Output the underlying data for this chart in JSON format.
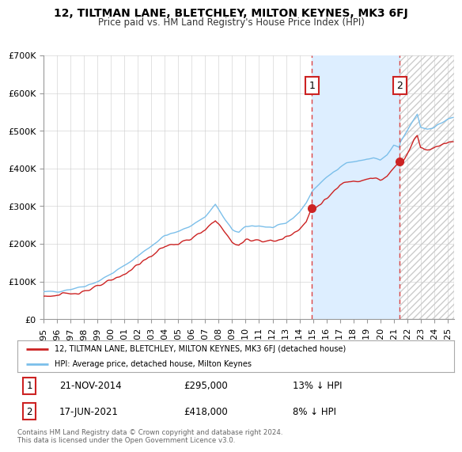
{
  "title": "12, TILTMAN LANE, BLETCHLEY, MILTON KEYNES, MK3 6FJ",
  "subtitle": "Price paid vs. HM Land Registry's House Price Index (HPI)",
  "ylim": [
    0,
    700000
  ],
  "yticks": [
    0,
    100000,
    200000,
    300000,
    400000,
    500000,
    600000,
    700000
  ],
  "ytick_labels": [
    "£0",
    "£100K",
    "£200K",
    "£300K",
    "£400K",
    "£500K",
    "£600K",
    "£700K"
  ],
  "xlim_start": 1995.0,
  "xlim_end": 2025.5,
  "xtick_years": [
    1995,
    1996,
    1997,
    1998,
    1999,
    2000,
    2001,
    2002,
    2003,
    2004,
    2005,
    2006,
    2007,
    2008,
    2009,
    2010,
    2011,
    2012,
    2013,
    2014,
    2015,
    2016,
    2017,
    2018,
    2019,
    2020,
    2021,
    2022,
    2023,
    2024,
    2025
  ],
  "hpi_color": "#7bbfea",
  "price_color": "#cc2222",
  "sale1_x": 2014.92,
  "sale1_y": 295000,
  "sale2_x": 2021.46,
  "sale2_y": 418000,
  "dashed_color": "#dd4444",
  "shade_color": "#ddeeff",
  "hatch_color": "#cccccc",
  "legend_label1": "12, TILTMAN LANE, BLETCHLEY, MILTON KEYNES, MK3 6FJ (detached house)",
  "legend_label2": "HPI: Average price, detached house, Milton Keynes",
  "annotation1_date": "21-NOV-2014",
  "annotation1_price": "£295,000",
  "annotation1_hpi": "13% ↓ HPI",
  "annotation2_date": "17-JUN-2021",
  "annotation2_price": "£418,000",
  "annotation2_hpi": "8% ↓ HPI",
  "footer": "Contains HM Land Registry data © Crown copyright and database right 2024.\nThis data is licensed under the Open Government Licence v3.0.",
  "bg_color": "#ffffff",
  "grid_color": "#cccccc"
}
